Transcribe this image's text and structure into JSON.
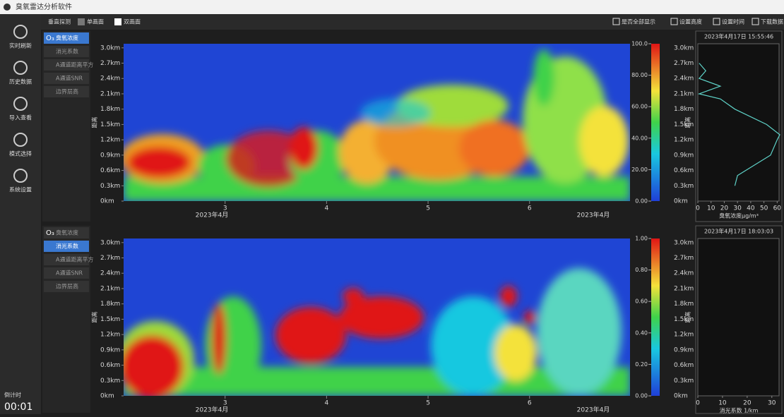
{
  "window": {
    "title": "臭氧雷达分析软件"
  },
  "sidebar": {
    "items": [
      "实时刷新",
      "历史数据",
      "导入查看",
      "模式选择",
      "系统设置"
    ],
    "timer_label": "倒计时",
    "timer": "00:01"
  },
  "toolbar": {
    "left": [
      "垂直探测",
      "单画面",
      "双画面"
    ],
    "right": [
      "是否全部显示",
      "设置高度",
      "设置时间",
      "下载数据"
    ]
  },
  "layer_icon": "O₃",
  "layers": [
    "臭氧浓度",
    "消光系数",
    "A通道距离平方",
    "A通道SNR",
    "边界层高"
  ],
  "panels": [
    {
      "active_layer": 0,
      "heatmap": {
        "y_title": "距离",
        "xlim": [
          2.0,
          6.99
        ],
        "xticks": [
          3,
          4,
          5,
          6
        ],
        "date_labels": [
          "2023年4月",
          "2023年4月"
        ],
        "ylim": [
          0,
          3.08
        ],
        "yticks": [
          {
            "value": 0,
            "label": "0km"
          },
          {
            "value": 0.3,
            "label": "0.3km"
          },
          {
            "value": 0.6,
            "label": "0.6km"
          },
          {
            "value": 0.9,
            "label": "0.9km"
          },
          {
            "value": 1.2,
            "label": "1.2km"
          },
          {
            "value": 1.5,
            "label": "1.5km"
          },
          {
            "value": 1.8,
            "label": "1.8km"
          },
          {
            "value": 2.1,
            "label": "2.1km"
          },
          {
            "value": 2.4,
            "label": "2.4km"
          },
          {
            "value": 2.7,
            "label": "2.7km"
          },
          {
            "value": 3.0,
            "label": "3.0km"
          }
        ],
        "clim": [
          0,
          100
        ],
        "cticks": [
          {
            "value": 0,
            "label": "0.00"
          },
          {
            "value": 20,
            "label": "20.00"
          },
          {
            "value": 40,
            "label": "40.00"
          },
          {
            "value": 60,
            "label": "60.00"
          },
          {
            "value": 80,
            "label": "80.00"
          },
          {
            "value": 100,
            "label": "100.0"
          }
        ]
      },
      "profile": {
        "time": "2023年4月17日 15:55:46",
        "y_title": "距离",
        "x_title": "臭氧浓度μg/m³",
        "xlim": [
          0,
          62.5
        ],
        "xticks": [
          0,
          10,
          20,
          30,
          40,
          50,
          60
        ],
        "color": "#5fd3c9",
        "x": [
          28,
          30,
          55,
          60,
          62,
          52,
          28,
          17,
          1,
          17,
          1,
          6,
          1
        ],
        "y": [
          0.3,
          0.5,
          0.9,
          1.2,
          1.3,
          1.5,
          1.8,
          2.0,
          2.1,
          2.25,
          2.4,
          2.55,
          2.7
        ]
      }
    },
    {
      "active_layer": 1,
      "heatmap": {
        "y_title": "距离",
        "xlim": [
          2.0,
          6.99
        ],
        "xticks": [
          3,
          4,
          5,
          6
        ],
        "date_labels": [
          "2023年4月",
          "2023年4月"
        ],
        "ylim": [
          0,
          3.08
        ],
        "yticks": [
          {
            "value": 0,
            "label": "0km"
          },
          {
            "value": 0.3,
            "label": "0.3km"
          },
          {
            "value": 0.6,
            "label": "0.6km"
          },
          {
            "value": 0.9,
            "label": "0.9km"
          },
          {
            "value": 1.2,
            "label": "1.2km"
          },
          {
            "value": 1.5,
            "label": "1.5km"
          },
          {
            "value": 1.8,
            "label": "1.8km"
          },
          {
            "value": 2.1,
            "label": "2.1km"
          },
          {
            "value": 2.4,
            "label": "2.4km"
          },
          {
            "value": 2.7,
            "label": "2.7km"
          },
          {
            "value": 3.0,
            "label": "3.0km"
          }
        ],
        "clim": [
          0,
          1
        ],
        "cticks": [
          {
            "value": 0,
            "label": "0.00"
          },
          {
            "value": 0.2,
            "label": "0.20"
          },
          {
            "value": 0.4,
            "label": "0.40"
          },
          {
            "value": 0.6,
            "label": "0.60"
          },
          {
            "value": 0.8,
            "label": "0.80"
          },
          {
            "value": 1,
            "label": "1.00"
          }
        ]
      },
      "profile": {
        "time": "2023年4月17日 18:03:03",
        "y_title": "距离",
        "x_title": "消光系数 1/km",
        "xlim": [
          0,
          33.5
        ],
        "xticks": [
          0,
          10,
          20,
          30
        ],
        "color": "#5fd3c9",
        "x": [],
        "y": []
      }
    }
  ]
}
